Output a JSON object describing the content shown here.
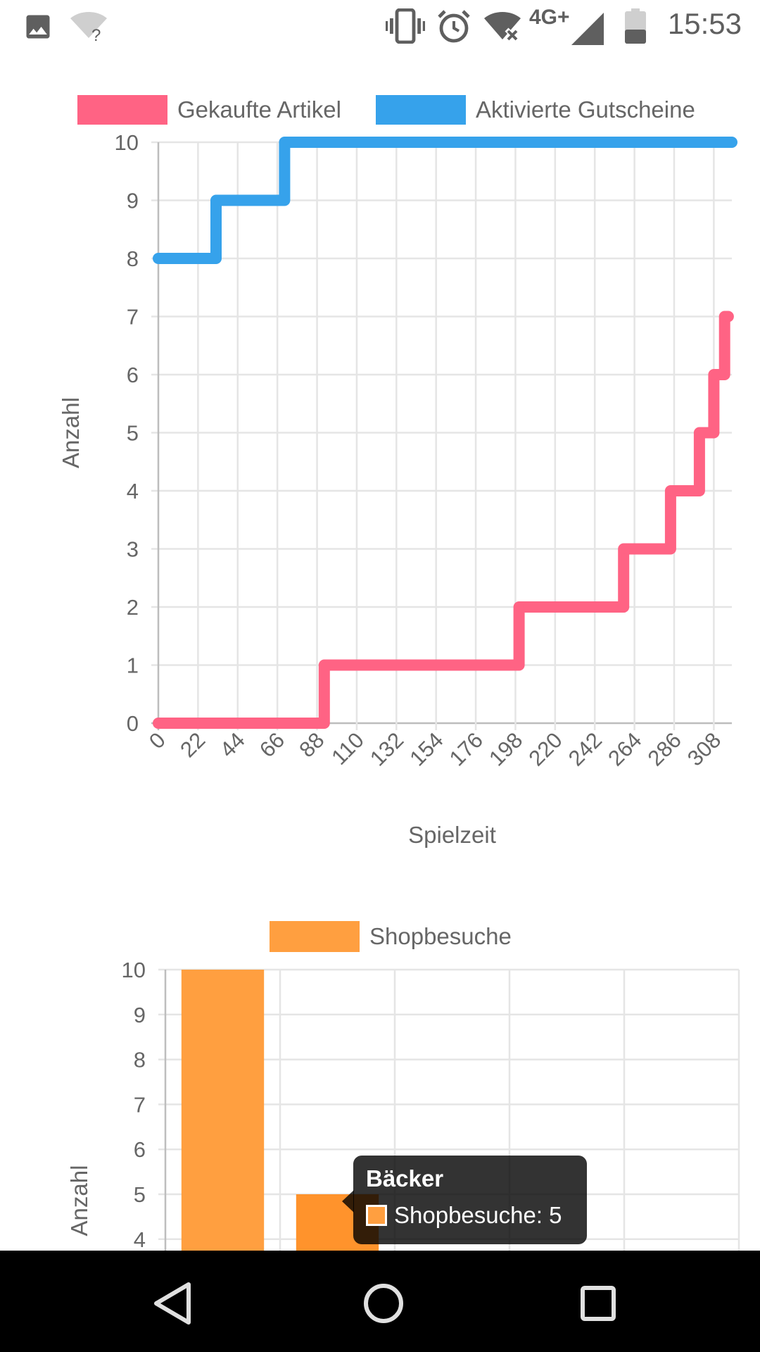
{
  "status_bar": {
    "time": "15:53",
    "network": "4G+",
    "icons": [
      "image-icon",
      "wifi-question-icon",
      "vibrate-icon",
      "alarm-icon",
      "wifi-off-icon",
      "signal-icon",
      "battery-icon"
    ]
  },
  "chart_data": [
    {
      "type": "line",
      "stepped": true,
      "title": "",
      "xlabel": "Spielzeit",
      "ylabel": "Anzahl",
      "legend_position": "top",
      "x_ticks": [
        "0",
        "22",
        "44",
        "66",
        "88",
        "110",
        "132",
        "154",
        "176",
        "198",
        "220",
        "242",
        "264",
        "286",
        "308"
      ],
      "xlim": [
        0,
        318
      ],
      "ylim": [
        0,
        10
      ],
      "y_ticks": [
        "0",
        "1",
        "2",
        "3",
        "4",
        "5",
        "6",
        "7",
        "8",
        "9",
        "10"
      ],
      "grid": true,
      "series": [
        {
          "name": "Gekaufte Artikel",
          "color": "#ff6384",
          "points": [
            [
              0,
              0
            ],
            [
              92,
              0
            ],
            [
              92,
              1
            ],
            [
              200,
              1
            ],
            [
              200,
              2
            ],
            [
              258,
              2
            ],
            [
              258,
              3
            ],
            [
              284,
              3
            ],
            [
              284,
              4
            ],
            [
              300,
              4
            ],
            [
              300,
              5
            ],
            [
              308,
              5
            ],
            [
              308,
              6
            ],
            [
              314,
              6
            ],
            [
              314,
              7
            ],
            [
              316,
              7
            ]
          ]
        },
        {
          "name": "Aktivierte Gutscheine",
          "color": "#36a2eb",
          "points": [
            [
              0,
              8
            ],
            [
              32,
              8
            ],
            [
              32,
              9
            ],
            [
              70,
              9
            ],
            [
              70,
              10
            ],
            [
              318,
              10
            ]
          ]
        }
      ]
    },
    {
      "type": "bar",
      "title": "",
      "ylabel": "Anzahl",
      "legend_position": "top",
      "ylim": [
        0,
        10
      ],
      "y_ticks": [
        "4",
        "5",
        "6",
        "7",
        "8",
        "9",
        "10"
      ],
      "grid": true,
      "categories": [
        "",
        "Bäcker",
        "",
        "",
        ""
      ],
      "series": [
        {
          "name": "Shopbesuche",
          "color": "#ff9f40",
          "values": [
            10,
            5,
            null,
            null,
            null
          ]
        }
      ]
    }
  ],
  "tooltip": {
    "title": "Bäcker",
    "label": "Shopbesuche: 5",
    "swatch_color": "#ff9f40"
  }
}
